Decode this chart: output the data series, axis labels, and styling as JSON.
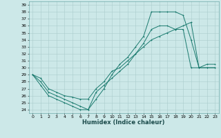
{
  "title": "",
  "xlabel": "Humidex (Indice chaleur)",
  "background_color": "#cce8e8",
  "line_color": "#1a7a6e",
  "grid_color": "#aacccc",
  "xlim": [
    -0.5,
    23.5
  ],
  "ylim": [
    23.5,
    39.5
  ],
  "yticks": [
    24,
    25,
    26,
    27,
    28,
    29,
    30,
    31,
    32,
    33,
    34,
    35,
    36,
    37,
    38,
    39
  ],
  "xticks": [
    0,
    1,
    2,
    3,
    4,
    5,
    6,
    7,
    8,
    9,
    10,
    11,
    12,
    13,
    14,
    15,
    16,
    17,
    18,
    19,
    20,
    21,
    22,
    23
  ],
  "line1_x": [
    0,
    1,
    2,
    3,
    4,
    5,
    6,
    7,
    8,
    9,
    10,
    11,
    12,
    13,
    14,
    15,
    16,
    17,
    18,
    19,
    20,
    21,
    22,
    23
  ],
  "line1_y": [
    29.0,
    27.5,
    26.0,
    25.5,
    25.0,
    24.5,
    24.0,
    24.0,
    26.5,
    27.5,
    28.5,
    29.5,
    30.5,
    32.0,
    33.5,
    35.5,
    36.0,
    36.0,
    35.5,
    35.5,
    30.0,
    30.0,
    30.0,
    30.0
  ],
  "line2_x": [
    0,
    1,
    2,
    3,
    4,
    5,
    6,
    7,
    8,
    9,
    10,
    11,
    12,
    13,
    14,
    15,
    16,
    17,
    18,
    19,
    20,
    21,
    22,
    23
  ],
  "line2_y": [
    29.0,
    28.0,
    26.5,
    26.0,
    25.5,
    25.0,
    24.5,
    24.0,
    25.5,
    27.0,
    29.0,
    30.5,
    31.5,
    33.0,
    34.5,
    38.0,
    38.0,
    38.0,
    38.0,
    37.5,
    34.0,
    30.0,
    30.0,
    30.0
  ],
  "line3_x": [
    0,
    1,
    2,
    3,
    4,
    5,
    6,
    7,
    8,
    9,
    10,
    11,
    12,
    13,
    14,
    15,
    16,
    17,
    18,
    19,
    20,
    21,
    22,
    23
  ],
  "line3_y": [
    29.0,
    28.5,
    27.0,
    26.5,
    26.0,
    25.8,
    25.5,
    25.5,
    27.0,
    28.0,
    29.5,
    30.0,
    31.0,
    32.0,
    33.0,
    34.0,
    34.5,
    35.0,
    35.5,
    36.0,
    36.5,
    30.0,
    30.5,
    30.5
  ],
  "tick_fontsize": 4.5,
  "xlabel_fontsize": 6.0,
  "lw": 0.7,
  "ms": 2.0
}
